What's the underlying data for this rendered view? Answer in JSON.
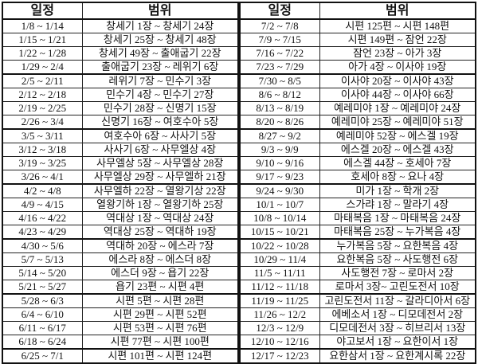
{
  "headers": {
    "date": "일정",
    "range": "범위"
  },
  "left": [
    [
      "1/8 ~ 1/14",
      "창세기 1장 ~ 창세기 24장"
    ],
    [
      "1/15 ~ 1/21",
      "창세기 25장 ~ 창세기 48장"
    ],
    [
      "1/22 ~ 1/28",
      "창세기 49장 ~ 출애굽기 22장"
    ],
    [
      "1/29 ~ 2/4",
      "출애굽기 23장 ~ 레위기 6장"
    ],
    [
      "2/5 ~ 2/11",
      "레위기 7장 ~ 민수기 3장"
    ],
    [
      "2/12 ~ 2/18",
      "민수기 4장 ~ 민수기 27장"
    ],
    [
      "2/19 ~ 2/25",
      "민수기 28장  ~ 신명기 15장"
    ],
    [
      "2/26 ~ 3/4",
      "신명기 16장 ~ 여호수아 5장"
    ],
    [
      "3/5 ~ 3/11",
      "여호수아 6장 ~ 사사기 5장"
    ],
    [
      "3/12 ~ 3/18",
      "사사기 6장 ~ 사무엘상 4장"
    ],
    [
      "3/19 ~ 3/25",
      "사무엘상 5장 ~ 사무엘상 28장"
    ],
    [
      "3/26 ~ 4/1",
      "사무엘상 29장 ~ 사무엘하 21장"
    ],
    [
      "4/2 ~ 4/8",
      "사무엘하 22장 ~ 열왕기상 22장"
    ],
    [
      "4/9 ~ 4/15",
      "열왕기하 1장 ~ 열왕기하 25장"
    ],
    [
      "4/16 ~ 4/22",
      "역대상 1장 ~ 역대상 24장"
    ],
    [
      "4/23 ~ 4/29",
      "역대상 25장 ~ 역대하 19장"
    ],
    [
      "4/30 ~ 5/6",
      "역대하 20장 ~ 에스라 7장"
    ],
    [
      "5/7 ~ 5/13",
      "에스라 8장 ~ 에스더 8장"
    ],
    [
      "5/14 ~ 5/20",
      "에스더 9장 ~ 욥기 22장"
    ],
    [
      "5/21 ~ 5/27",
      "욥기 23편 ~ 시편 4편"
    ],
    [
      "5/28 ~ 6/3",
      "시편 5편 ~ 시편 28편"
    ],
    [
      "6/4 ~ 6/10",
      "시편 29편 ~ 시편 52편"
    ],
    [
      "6/11 ~ 6/17",
      "시편 53편 ~ 시편 76편"
    ],
    [
      "6/18 ~ 6/24",
      "시편 77편 ~ 시편 100편"
    ],
    [
      "6/25 ~ 7/1",
      "시편 101편 ~ 시편 124편"
    ]
  ],
  "right": [
    [
      "7/2 ~ 7/8",
      "시편 125편 ~ 시편 148편"
    ],
    [
      "7/9 ~ 7/15",
      "시편 149편 ~ 잠언 22장"
    ],
    [
      "7/16 ~ 7/22",
      "잠언 23장 ~ 아가 3장"
    ],
    [
      "7/23 ~ 7/29",
      "아가 4장 ~ 이사야 19장"
    ],
    [
      "7/30 ~ 8/5",
      "이사야 20장 ~ 이사야 43장"
    ],
    [
      "8/6 ~ 8/12",
      "이사야 44장 ~ 이사야 66장"
    ],
    [
      "8/13 ~ 8/19",
      "예레미야 1장 ~ 예레미야 24장"
    ],
    [
      "8/20 ~ 8/26",
      "예레미야 25장 ~ 예레미야 51장"
    ],
    [
      "8/27 ~ 9/2",
      "예레미야 52장 ~ 에스겔 19장"
    ],
    [
      "9/3 ~ 9/9",
      "에스겔 20장 ~ 에스겔 43장"
    ],
    [
      "9/10 ~ 9/16",
      "에스겔 44장 ~ 호세아 7장"
    ],
    [
      "9/17 ~ 9/23",
      "호세아 8장 ~ 요나 4장"
    ],
    [
      "9/24 ~ 9/30",
      "미가 1장 ~ 학개 2장"
    ],
    [
      "10/1 ~ 10/7",
      "스가랴 1장 ~ 말라기 4장"
    ],
    [
      "10/8 ~ 10/14",
      "마태복음 1장 ~ 마태복음 24장"
    ],
    [
      "10/15 ~ 10/21",
      "마태복음 25장 ~ 누가복음 4장"
    ],
    [
      "10/22 ~ 10/28",
      "누가복음 5장 ~ 요한복음 4장"
    ],
    [
      "10/29 ~ 11/4",
      "요한복음 5장 ~ 사도행전 6장"
    ],
    [
      "11/5 ~ 11/11",
      "사도행전 7장 ~ 로마서 2장"
    ],
    [
      "11/12 ~ 11/18",
      "로마서 3장~ 고린도전서 10장"
    ],
    [
      "11/19 ~ 11/25",
      "고린도전서 11장 ~ 갈라디아서 6장"
    ],
    [
      "11/26 ~ 12/2",
      "에베소서 1장 ~ 디모데전서 2장"
    ],
    [
      "12/3 ~ 12/9",
      "디모데전서 3장 ~ 히브리서 13장"
    ],
    [
      "12/10 ~ 12/16",
      "야고보서 1장 ~ 요한이서 1장"
    ],
    [
      "12/17 ~ 12/23",
      "요한삼서 1장 ~ 요한계시록 22장"
    ]
  ]
}
